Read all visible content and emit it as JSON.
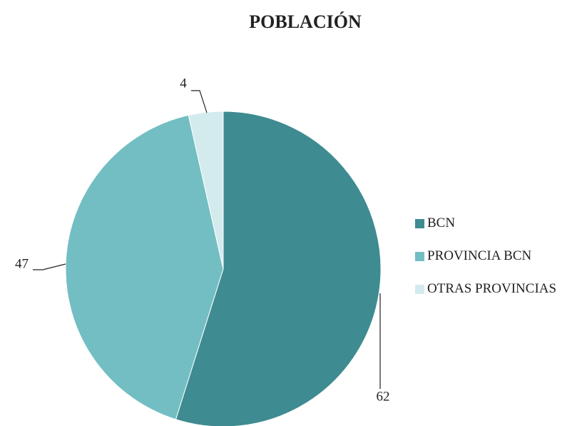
{
  "chart_data": {
    "type": "pie",
    "title": "POBLACIÓN",
    "categories": [
      "BCN",
      "PROVINCIA BCN",
      "OTRAS PROVINCIAS"
    ],
    "values": [
      62,
      47,
      4
    ],
    "colors": [
      "#3e8b91",
      "#72bec3",
      "#d4ebee"
    ],
    "legend": "right"
  }
}
